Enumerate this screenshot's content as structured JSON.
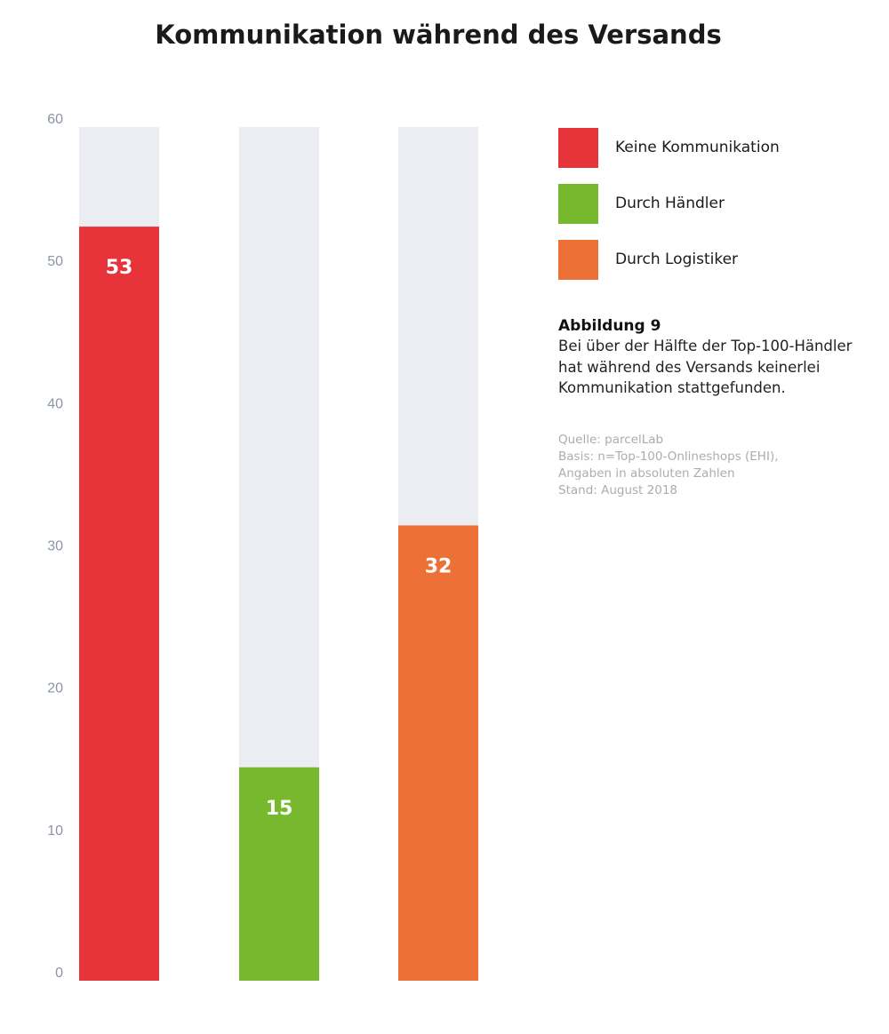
{
  "chart_data": {
    "type": "bar",
    "title": "Kommunikation während des Versands",
    "categories": [
      "Keine Kommunikation",
      "Durch Händler",
      "Durch Logistiker"
    ],
    "values": [
      53,
      15,
      32
    ],
    "colors": [
      "#e6343a",
      "#77b82f",
      "#ed7036"
    ],
    "background_color": "#ecedf3",
    "ylim": [
      0,
      60
    ],
    "yticks": [
      0,
      10,
      20,
      30,
      40,
      50,
      60
    ],
    "grid": false,
    "legend_placement": "right"
  },
  "caption": {
    "title": "Abbildung 9",
    "lines": [
      "Bei über der Hälfte der Top-100-Händler",
      "hat während des Versands keinerlei",
      "Kommunikation stattgefunden."
    ]
  },
  "source": {
    "lines": [
      "Quelle: parcelLab",
      "Basis: n=Top-100-Onlineshops (EHI),",
      "Angaben in absoluten Zahlen",
      "Stand: August 2018"
    ]
  }
}
